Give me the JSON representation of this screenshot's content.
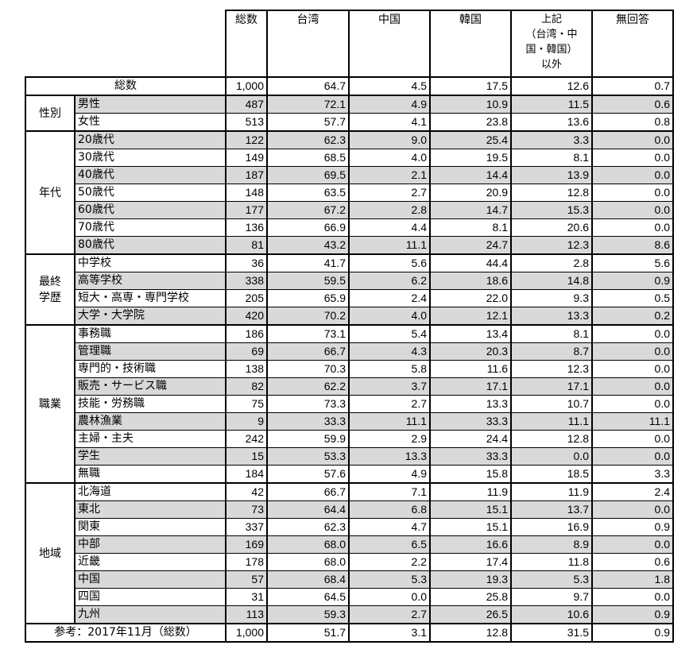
{
  "headers": [
    "総数",
    "台湾",
    "中国",
    "韓国",
    "上記\n（台湾・中\n国・韓国）\n以外",
    "無回答"
  ],
  "total": {
    "label": "総数",
    "values": [
      "1,000",
      "64.7",
      "4.5",
      "17.5",
      "12.6",
      "0.7"
    ]
  },
  "groups": [
    {
      "label": "性別",
      "rows": [
        {
          "label": "男性",
          "values": [
            "487",
            "72.1",
            "4.9",
            "10.9",
            "11.5",
            "0.6"
          ]
        },
        {
          "label": "女性",
          "values": [
            "513",
            "57.7",
            "4.1",
            "23.8",
            "13.6",
            "0.8"
          ]
        }
      ]
    },
    {
      "label": "年代",
      "rows": [
        {
          "label": "20歳代",
          "values": [
            "122",
            "62.3",
            "9.0",
            "25.4",
            "3.3",
            "0.0"
          ]
        },
        {
          "label": "30歳代",
          "values": [
            "149",
            "68.5",
            "4.0",
            "19.5",
            "8.1",
            "0.0"
          ]
        },
        {
          "label": "40歳代",
          "values": [
            "187",
            "69.5",
            "2.1",
            "14.4",
            "13.9",
            "0.0"
          ]
        },
        {
          "label": "50歳代",
          "values": [
            "148",
            "63.5",
            "2.7",
            "20.9",
            "12.8",
            "0.0"
          ]
        },
        {
          "label": "60歳代",
          "values": [
            "177",
            "67.2",
            "2.8",
            "14.7",
            "15.3",
            "0.0"
          ]
        },
        {
          "label": "70歳代",
          "values": [
            "136",
            "66.9",
            "4.4",
            "8.1",
            "20.6",
            "0.0"
          ]
        },
        {
          "label": "80歳代",
          "values": [
            "81",
            "43.2",
            "11.1",
            "24.7",
            "12.3",
            "8.6"
          ]
        }
      ]
    },
    {
      "label": "最終\n学歴",
      "rows": [
        {
          "label": "中学校",
          "values": [
            "36",
            "41.7",
            "5.6",
            "44.4",
            "2.8",
            "5.6"
          ]
        },
        {
          "label": "高等学校",
          "values": [
            "338",
            "59.5",
            "6.2",
            "18.6",
            "14.8",
            "0.9"
          ]
        },
        {
          "label": "短大・高専・専門学校",
          "values": [
            "205",
            "65.9",
            "2.4",
            "22.0",
            "9.3",
            "0.5"
          ]
        },
        {
          "label": "大学・大学院",
          "values": [
            "420",
            "70.2",
            "4.0",
            "12.1",
            "13.3",
            "0.2"
          ]
        }
      ]
    },
    {
      "label": "職業",
      "rows": [
        {
          "label": "事務職",
          "values": [
            "186",
            "73.1",
            "5.4",
            "13.4",
            "8.1",
            "0.0"
          ]
        },
        {
          "label": "管理職",
          "values": [
            "69",
            "66.7",
            "4.3",
            "20.3",
            "8.7",
            "0.0"
          ]
        },
        {
          "label": "専門的・技術職",
          "values": [
            "138",
            "70.3",
            "5.8",
            "11.6",
            "12.3",
            "0.0"
          ]
        },
        {
          "label": "販売・サービス職",
          "values": [
            "82",
            "62.2",
            "3.7",
            "17.1",
            "17.1",
            "0.0"
          ]
        },
        {
          "label": "技能・労務職",
          "values": [
            "75",
            "73.3",
            "2.7",
            "13.3",
            "10.7",
            "0.0"
          ]
        },
        {
          "label": "農林漁業",
          "values": [
            "9",
            "33.3",
            "11.1",
            "33.3",
            "11.1",
            "11.1"
          ]
        },
        {
          "label": "主婦・主夫",
          "values": [
            "242",
            "59.9",
            "2.9",
            "24.4",
            "12.8",
            "0.0"
          ]
        },
        {
          "label": "学生",
          "values": [
            "15",
            "53.3",
            "13.3",
            "33.3",
            "0.0",
            "0.0"
          ]
        },
        {
          "label": "無職",
          "values": [
            "184",
            "57.6",
            "4.9",
            "15.8",
            "18.5",
            "3.3"
          ]
        }
      ]
    },
    {
      "label": "地域",
      "rows": [
        {
          "label": "北海道",
          "values": [
            "42",
            "66.7",
            "7.1",
            "11.9",
            "11.9",
            "2.4"
          ]
        },
        {
          "label": "東北",
          "values": [
            "73",
            "64.4",
            "6.8",
            "15.1",
            "13.7",
            "0.0"
          ]
        },
        {
          "label": "関東",
          "values": [
            "337",
            "62.3",
            "4.7",
            "15.1",
            "16.9",
            "0.9"
          ]
        },
        {
          "label": "中部",
          "values": [
            "169",
            "68.0",
            "6.5",
            "16.6",
            "8.9",
            "0.0"
          ]
        },
        {
          "label": "近畿",
          "values": [
            "178",
            "68.0",
            "2.2",
            "17.4",
            "11.8",
            "0.6"
          ]
        },
        {
          "label": "中国",
          "values": [
            "57",
            "68.4",
            "5.3",
            "19.3",
            "5.3",
            "1.8"
          ]
        },
        {
          "label": "四国",
          "values": [
            "31",
            "64.5",
            "0.0",
            "25.8",
            "9.7",
            "0.0"
          ]
        },
        {
          "label": "九州",
          "values": [
            "113",
            "59.3",
            "2.7",
            "26.5",
            "10.6",
            "0.9"
          ]
        }
      ]
    }
  ],
  "reference": {
    "label": "参考：2017年11月（総数）",
    "values": [
      "1,000",
      "51.7",
      "3.1",
      "12.8",
      "31.5",
      "0.9"
    ]
  },
  "colors": {
    "shaded_row": "#d9d9d9",
    "border": "#000000"
  }
}
